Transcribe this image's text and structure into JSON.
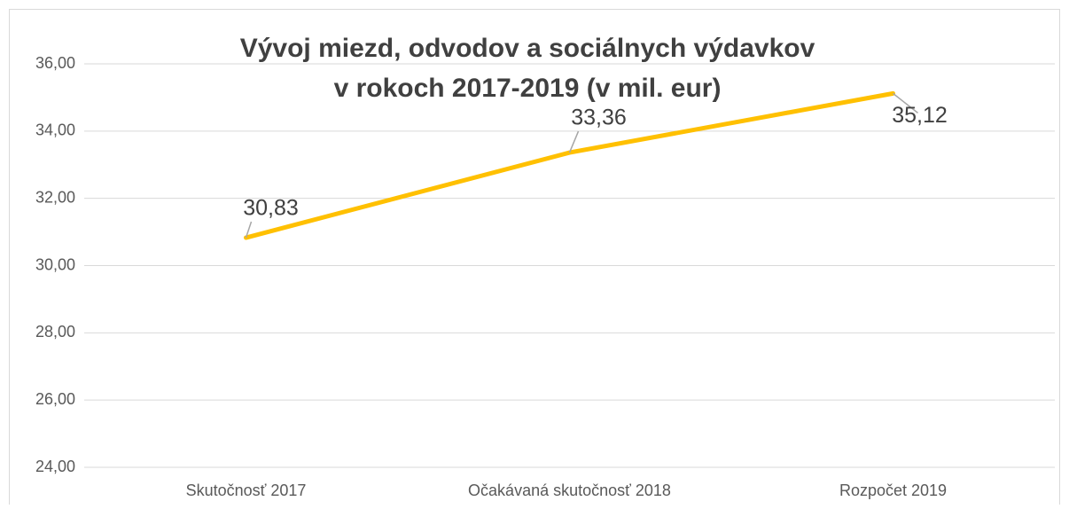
{
  "chart_data": {
    "type": "line",
    "title_lines": [
      "Vývoj miezd, odvodov a sociálnych výdavkov",
      "v rokoch 2017-2019 (v mil. eur)"
    ],
    "categories": [
      "Skutočnosť 2017",
      "Očakávaná skutočnosť 2018",
      "Rozpočet 2019"
    ],
    "values": [
      30.83,
      33.36,
      35.12
    ],
    "value_labels": [
      "30,83",
      "33,36",
      "35,12"
    ],
    "color": "#FFC000",
    "ylim": [
      24,
      36
    ],
    "yticks": [
      {
        "value": 24,
        "label": "24,00"
      },
      {
        "value": 26,
        "label": "26,00"
      },
      {
        "value": 28,
        "label": "28,00"
      },
      {
        "value": 30,
        "label": "30,00"
      },
      {
        "value": 32,
        "label": "32,00"
      },
      {
        "value": 34,
        "label": "34,00"
      },
      {
        "value": 36,
        "label": "36,00"
      }
    ],
    "grid": true
  }
}
